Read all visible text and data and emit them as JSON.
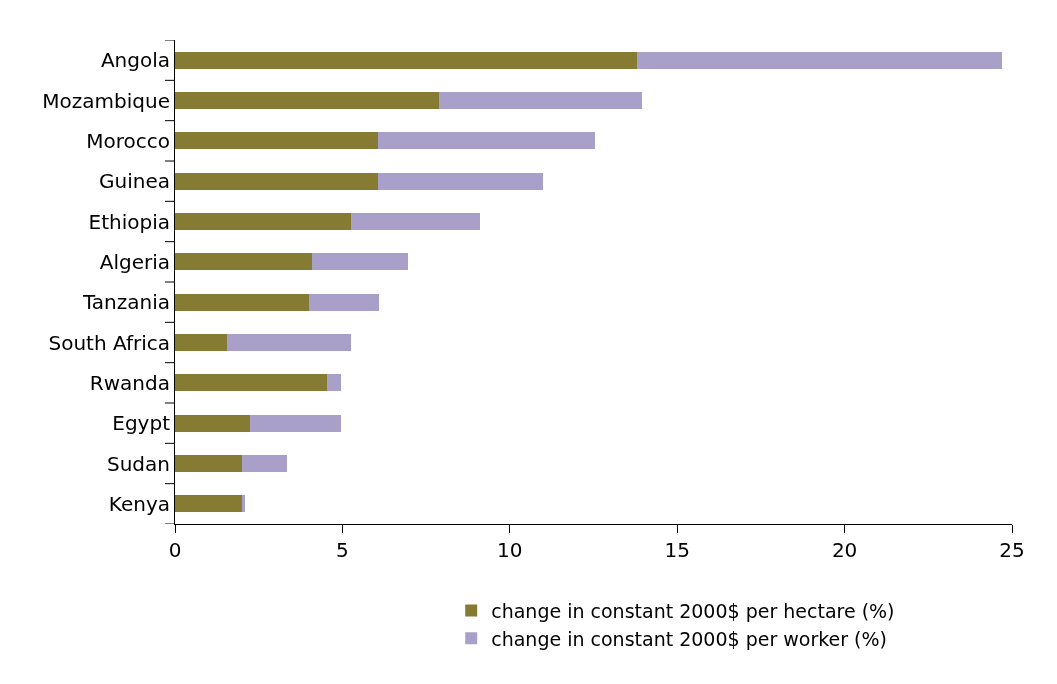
{
  "chart_data": {
    "type": "bar",
    "orientation": "horizontal",
    "stacked": true,
    "categories": [
      "Angola",
      "Mozambique",
      "Morocco",
      "Guinea",
      "Ethiopia",
      "Algeria",
      "Tanzania",
      "South Africa",
      "Rwanda",
      "Egypt",
      "Sudan",
      "Kenya"
    ],
    "series": [
      {
        "name": "change in constant 2000$ per hectare (%)",
        "color": "#857b33",
        "values": [
          13.8,
          7.9,
          6.05,
          6.05,
          5.25,
          4.1,
          4.0,
          1.55,
          4.55,
          2.25,
          2.0,
          2.0
        ]
      },
      {
        "name": "change in constant 2000$ per worker (%)",
        "color": "#a8a0c8",
        "values": [
          10.9,
          6.05,
          6.5,
          4.95,
          3.85,
          2.85,
          2.1,
          3.7,
          0.4,
          2.7,
          1.35,
          0.1
        ]
      }
    ],
    "xlim": [
      0,
      25
    ],
    "xticks": [
      0,
      5,
      10,
      15,
      20,
      25
    ],
    "legend": "bottom"
  }
}
